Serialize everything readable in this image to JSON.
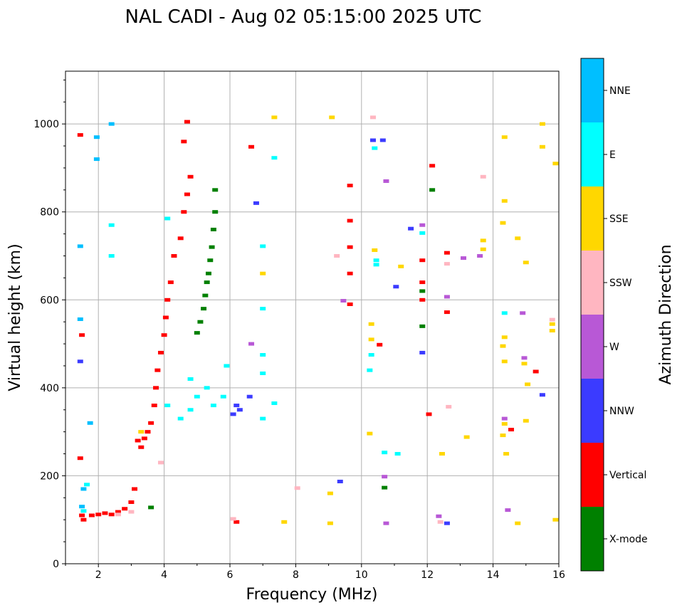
{
  "chart_data": {
    "type": "scatter",
    "title": "NAL CADI - Aug 02 05:15:00 2025 UTC",
    "xlabel": "Frequency (MHz)",
    "ylabel": "Virtual height (km)",
    "xlim": [
      1,
      16
    ],
    "ylim": [
      0,
      1120
    ],
    "xticks": [
      2,
      4,
      6,
      8,
      10,
      12,
      14,
      16
    ],
    "yticks": [
      0,
      200,
      400,
      600,
      800,
      1000
    ],
    "grid": true,
    "colorbar": {
      "label": "Azimuth Direction",
      "categories": [
        "X-mode",
        "Vertical",
        "NNW",
        "W",
        "SSW",
        "SSE",
        "E",
        "NNE"
      ],
      "colors": [
        "#008000",
        "#ff0000",
        "#3b3bff",
        "#b858d6",
        "#ffb6c1",
        "#ffd700",
        "#00ffff",
        "#00bfff"
      ]
    },
    "series": [
      {
        "name": "X-mode",
        "points": [
          [
            3.6,
            128
          ],
          [
            5.0,
            525
          ],
          [
            5.1,
            550
          ],
          [
            5.2,
            580
          ],
          [
            5.25,
            610
          ],
          [
            5.3,
            640
          ],
          [
            5.35,
            660
          ],
          [
            5.4,
            690
          ],
          [
            5.45,
            720
          ],
          [
            5.5,
            760
          ],
          [
            5.55,
            800
          ],
          [
            5.55,
            850
          ],
          [
            10.7,
            173
          ],
          [
            12.15,
            850
          ],
          [
            11.85,
            540
          ],
          [
            11.85,
            620
          ]
        ]
      },
      {
        "name": "Vertical",
        "points": [
          [
            1.5,
            110
          ],
          [
            1.55,
            100
          ],
          [
            1.8,
            110
          ],
          [
            2.0,
            112
          ],
          [
            2.2,
            115
          ],
          [
            2.4,
            112
          ],
          [
            2.6,
            118
          ],
          [
            2.8,
            125
          ],
          [
            3.0,
            140
          ],
          [
            3.1,
            170
          ],
          [
            3.2,
            280
          ],
          [
            3.3,
            265
          ],
          [
            3.4,
            285
          ],
          [
            3.5,
            300
          ],
          [
            3.6,
            320
          ],
          [
            3.7,
            360
          ],
          [
            3.75,
            400
          ],
          [
            3.8,
            440
          ],
          [
            3.9,
            480
          ],
          [
            4.0,
            520
          ],
          [
            4.05,
            560
          ],
          [
            4.1,
            600
          ],
          [
            4.2,
            640
          ],
          [
            4.3,
            700
          ],
          [
            4.5,
            740
          ],
          [
            4.6,
            800
          ],
          [
            4.7,
            840
          ],
          [
            4.8,
            880
          ],
          [
            4.6,
            960
          ],
          [
            4.7,
            1005
          ],
          [
            1.45,
            240
          ],
          [
            1.5,
            520
          ],
          [
            1.45,
            975
          ],
          [
            6.65,
            948
          ],
          [
            6.2,
            95
          ],
          [
            9.65,
            590
          ],
          [
            9.65,
            660
          ],
          [
            9.65,
            720
          ],
          [
            9.65,
            780
          ],
          [
            9.65,
            860
          ],
          [
            10.55,
            498
          ],
          [
            11.85,
            600
          ],
          [
            11.85,
            640
          ],
          [
            11.85,
            690
          ],
          [
            12.05,
            340
          ],
          [
            12.15,
            905
          ],
          [
            12.6,
            707
          ],
          [
            12.6,
            572
          ],
          [
            15.3,
            437
          ],
          [
            14.55,
            305
          ]
        ]
      },
      {
        "name": "NNW",
        "points": [
          [
            1.45,
            460
          ],
          [
            6.1,
            340
          ],
          [
            6.2,
            360
          ],
          [
            6.3,
            350
          ],
          [
            6.6,
            380
          ],
          [
            6.8,
            820
          ],
          [
            9.35,
            187
          ],
          [
            10.35,
            963
          ],
          [
            10.65,
            963
          ],
          [
            11.05,
            630
          ],
          [
            12.6,
            92
          ],
          [
            15.5,
            384
          ],
          [
            11.5,
            762
          ],
          [
            11.85,
            480
          ]
        ]
      },
      {
        "name": "W",
        "points": [
          [
            6.65,
            500
          ],
          [
            9.45,
            598
          ],
          [
            10.7,
            198
          ],
          [
            10.75,
            92
          ],
          [
            10.75,
            870
          ],
          [
            11.85,
            770
          ],
          [
            12.6,
            607
          ],
          [
            13.1,
            695
          ],
          [
            13.6,
            700
          ],
          [
            14.35,
            330
          ],
          [
            14.45,
            122
          ],
          [
            14.9,
            570
          ],
          [
            14.95,
            468
          ],
          [
            12.35,
            108
          ]
        ]
      },
      {
        "name": "SSW",
        "points": [
          [
            2.6,
            112
          ],
          [
            3.0,
            118
          ],
          [
            3.9,
            230
          ],
          [
            6.1,
            102
          ],
          [
            8.05,
            172
          ],
          [
            9.25,
            700
          ],
          [
            10.35,
            1015
          ],
          [
            12.6,
            682
          ],
          [
            12.65,
            357
          ],
          [
            13.7,
            880
          ],
          [
            12.4,
            95
          ],
          [
            15.8,
            555
          ]
        ]
      },
      {
        "name": "SSE",
        "points": [
          [
            3.3,
            300
          ],
          [
            7.0,
            660
          ],
          [
            7.35,
            1015
          ],
          [
            7.65,
            95
          ],
          [
            9.1,
            1015
          ],
          [
            9.05,
            160
          ],
          [
            9.05,
            92
          ],
          [
            10.25,
            296
          ],
          [
            10.3,
            545
          ],
          [
            10.3,
            510
          ],
          [
            10.4,
            713
          ],
          [
            11.2,
            676
          ],
          [
            12.45,
            250
          ],
          [
            13.2,
            288
          ],
          [
            13.7,
            735
          ],
          [
            13.7,
            715
          ],
          [
            14.35,
            970
          ],
          [
            14.35,
            825
          ],
          [
            14.3,
            775
          ],
          [
            14.35,
            515
          ],
          [
            14.3,
            495
          ],
          [
            14.35,
            460
          ],
          [
            14.35,
            318
          ],
          [
            14.3,
            292
          ],
          [
            14.4,
            250
          ],
          [
            14.75,
            92
          ],
          [
            14.75,
            740
          ],
          [
            15.0,
            685
          ],
          [
            14.95,
            455
          ],
          [
            15.05,
            408
          ],
          [
            15.0,
            325
          ],
          [
            15.5,
            1000
          ],
          [
            15.5,
            948
          ],
          [
            15.9,
            910
          ],
          [
            15.9,
            100
          ],
          [
            15.8,
            545
          ],
          [
            15.8,
            530
          ]
        ]
      },
      {
        "name": "E",
        "points": [
          [
            1.55,
            120
          ],
          [
            1.65,
            180
          ],
          [
            2.4,
            770
          ],
          [
            2.4,
            700
          ],
          [
            4.1,
            785
          ],
          [
            4.1,
            360
          ],
          [
            4.5,
            330
          ],
          [
            4.8,
            420
          ],
          [
            4.8,
            350
          ],
          [
            5.0,
            380
          ],
          [
            5.3,
            400
          ],
          [
            5.5,
            360
          ],
          [
            5.8,
            380
          ],
          [
            5.9,
            450
          ],
          [
            7.0,
            722
          ],
          [
            7.0,
            580
          ],
          [
            7.0,
            475
          ],
          [
            7.0,
            433
          ],
          [
            7.0,
            330
          ],
          [
            7.35,
            365
          ],
          [
            7.35,
            923
          ],
          [
            10.25,
            440
          ],
          [
            10.3,
            475
          ],
          [
            10.4,
            945
          ],
          [
            10.45,
            690
          ],
          [
            10.7,
            253
          ],
          [
            11.1,
            250
          ],
          [
            11.85,
            752
          ],
          [
            14.35,
            570
          ],
          [
            10.45,
            680
          ]
        ]
      },
      {
        "name": "NNE",
        "points": [
          [
            1.55,
            170
          ],
          [
            1.5,
            130
          ],
          [
            1.45,
            722
          ],
          [
            1.45,
            556
          ],
          [
            2.4,
            1000
          ],
          [
            1.95,
            970
          ],
          [
            1.95,
            920
          ],
          [
            1.75,
            320
          ]
        ]
      }
    ]
  }
}
